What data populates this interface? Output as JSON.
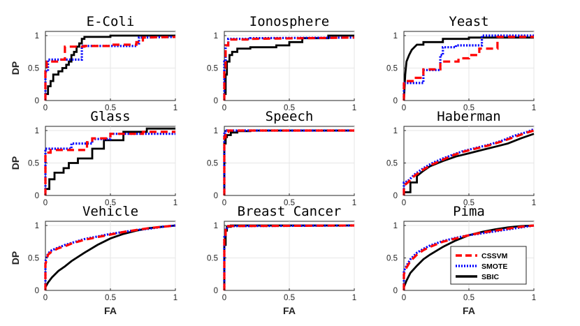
{
  "figure": {
    "xlabel": "FA",
    "ylabel": "DP"
  },
  "legend": {
    "position": "bottom-right of Pima panel",
    "entries": [
      {
        "name": "CSSVM",
        "color": "#ff0000",
        "style": "dashed"
      },
      {
        "name": "SMOTE",
        "color": "#0000ff",
        "style": "dotted"
      },
      {
        "name": "SBIC",
        "color": "#000000",
        "style": "solid"
      }
    ]
  },
  "chart_data": [
    {
      "type": "line",
      "title": "E-Coli",
      "xlabel": "",
      "ylabel": "DP",
      "xlim": [
        0,
        1
      ],
      "ylim": [
        0,
        1
      ],
      "xticks": [
        "0",
        "0.5",
        "1"
      ],
      "yticks": [
        "0",
        "0.5",
        "1"
      ],
      "series": [
        {
          "name": "CSSVM",
          "x": [
            0,
            0,
            0.01,
            0.01,
            0.1,
            0.1,
            0.15,
            0.15,
            0.3,
            0.3,
            0.5,
            0.5,
            0.7,
            0.7,
            0.75,
            0.75,
            1
          ],
          "y": [
            0,
            0.45,
            0.45,
            0.6,
            0.6,
            0.63,
            0.63,
            0.83,
            0.83,
            0.84,
            0.84,
            0.86,
            0.86,
            0.9,
            0.9,
            0.97,
            0.98
          ]
        },
        {
          "name": "SMOTE",
          "x": [
            0,
            0,
            0.02,
            0.02,
            0.12,
            0.12,
            0.28,
            0.28,
            0.4,
            0.4,
            0.7,
            0.7,
            0.72,
            0.72,
            1
          ],
          "y": [
            0,
            0.45,
            0.45,
            0.63,
            0.63,
            0.63,
            0.63,
            0.84,
            0.84,
            0.84,
            0.84,
            0.88,
            0.88,
            0.97,
            0.98
          ]
        },
        {
          "name": "SBIC",
          "x": [
            0,
            0,
            0.02,
            0.02,
            0.04,
            0.04,
            0.06,
            0.06,
            0.1,
            0.1,
            0.13,
            0.13,
            0.16,
            0.16,
            0.18,
            0.18,
            0.2,
            0.2,
            0.22,
            0.22,
            0.24,
            0.24,
            0.26,
            0.26,
            0.28,
            0.28,
            0.3,
            0.3,
            0.5,
            0.5,
            0.7,
            0.7,
            1
          ],
          "y": [
            0,
            0.1,
            0.1,
            0.22,
            0.22,
            0.3,
            0.3,
            0.4,
            0.4,
            0.45,
            0.45,
            0.5,
            0.5,
            0.55,
            0.55,
            0.6,
            0.6,
            0.7,
            0.7,
            0.75,
            0.75,
            0.83,
            0.83,
            0.88,
            0.88,
            0.95,
            0.95,
            0.98,
            0.98,
            1.0,
            1.0,
            1.0,
            1.0
          ]
        }
      ]
    },
    {
      "type": "line",
      "title": "Ionosphere",
      "xlabel": "",
      "ylabel": "",
      "xlim": [
        0,
        1
      ],
      "ylim": [
        0,
        1
      ],
      "xticks": [
        "0",
        "0.5",
        "1"
      ],
      "yticks": [
        "0",
        "0.5",
        "1"
      ],
      "series": [
        {
          "name": "CSSVM",
          "x": [
            0,
            0,
            0.01,
            0.01,
            0.03,
            0.03,
            0.2,
            0.2,
            1
          ],
          "y": [
            0,
            0.5,
            0.5,
            0.85,
            0.85,
            0.94,
            0.94,
            0.95,
            0.97
          ]
        },
        {
          "name": "SMOTE",
          "x": [
            0,
            0,
            0.01,
            0.01,
            0.03,
            0.03,
            0.2,
            0.2,
            1
          ],
          "y": [
            0,
            0.6,
            0.6,
            0.85,
            0.85,
            0.95,
            0.95,
            0.96,
            0.97
          ]
        },
        {
          "name": "SBIC",
          "x": [
            0,
            0,
            0.01,
            0.01,
            0.02,
            0.02,
            0.04,
            0.04,
            0.06,
            0.06,
            0.1,
            0.1,
            0.2,
            0.2,
            0.4,
            0.4,
            0.5,
            0.5,
            0.6,
            0.6,
            0.8,
            0.8,
            1
          ],
          "y": [
            0,
            0.1,
            0.1,
            0.4,
            0.4,
            0.6,
            0.6,
            0.7,
            0.7,
            0.75,
            0.75,
            0.8,
            0.8,
            0.82,
            0.82,
            0.85,
            0.85,
            0.9,
            0.9,
            0.96,
            0.96,
            1.0,
            1.0
          ]
        }
      ]
    },
    {
      "type": "line",
      "title": "Yeast",
      "xlabel": "",
      "ylabel": "",
      "xlim": [
        0,
        1
      ],
      "ylim": [
        0,
        1
      ],
      "xticks": [
        "0",
        "0.5",
        "1"
      ],
      "yticks": [
        "0",
        "0.5",
        "1"
      ],
      "series": [
        {
          "name": "CSSVM",
          "x": [
            0,
            0,
            0.08,
            0.08,
            0.15,
            0.15,
            0.28,
            0.28,
            0.42,
            0.42,
            0.5,
            0.5,
            0.58,
            0.58,
            0.72,
            0.72,
            1
          ],
          "y": [
            0,
            0.3,
            0.3,
            0.35,
            0.35,
            0.48,
            0.48,
            0.6,
            0.6,
            0.65,
            0.65,
            0.7,
            0.7,
            0.8,
            0.8,
            0.98,
            0.98
          ]
        },
        {
          "name": "SMOTE",
          "x": [
            0,
            0,
            0.15,
            0.15,
            0.28,
            0.28,
            0.3,
            0.3,
            0.4,
            0.4,
            0.6,
            0.6,
            1
          ],
          "y": [
            0,
            0.27,
            0.27,
            0.47,
            0.47,
            0.7,
            0.7,
            0.82,
            0.82,
            0.85,
            0.85,
            1.0,
            1.0
          ]
        },
        {
          "name": "SBIC",
          "x": [
            0,
            0.01,
            0.02,
            0.04,
            0.06,
            0.08,
            0.1,
            0.15,
            0.15,
            0.3,
            0.3,
            0.5,
            0.5,
            1
          ],
          "y": [
            0,
            0.4,
            0.6,
            0.7,
            0.78,
            0.82,
            0.86,
            0.86,
            0.9,
            0.9,
            0.95,
            0.95,
            0.97,
            0.97
          ]
        }
      ]
    },
    {
      "type": "line",
      "title": "Glass",
      "xlabel": "",
      "ylabel": "DP",
      "xlim": [
        0,
        1
      ],
      "ylim": [
        0,
        1
      ],
      "xticks": [
        "0",
        "0.5",
        "1"
      ],
      "yticks": [
        "0",
        "0.5",
        "1"
      ],
      "series": [
        {
          "name": "CSSVM",
          "x": [
            0,
            0,
            0.04,
            0.04,
            0.32,
            0.32,
            0.36,
            0.36,
            0.5,
            0.5,
            0.75,
            0.75,
            1
          ],
          "y": [
            0,
            0.66,
            0.66,
            0.7,
            0.7,
            0.82,
            0.82,
            0.88,
            0.88,
            0.95,
            0.95,
            0.98,
            0.98
          ]
        },
        {
          "name": "SMOTE",
          "x": [
            0,
            0,
            0.04,
            0.04,
            0.2,
            0.2,
            0.36,
            0.36,
            0.5,
            0.5,
            0.8,
            0.8,
            1
          ],
          "y": [
            0,
            0.72,
            0.72,
            0.72,
            0.72,
            0.8,
            0.8,
            0.87,
            0.87,
            0.95,
            0.95,
            0.95,
            0.95
          ]
        },
        {
          "name": "SBIC",
          "x": [
            0,
            0,
            0.03,
            0.03,
            0.07,
            0.07,
            0.14,
            0.14,
            0.18,
            0.18,
            0.25,
            0.25,
            0.36,
            0.36,
            0.45,
            0.45,
            0.6,
            0.6,
            0.78,
            0.78,
            1
          ],
          "y": [
            0,
            0.1,
            0.1,
            0.25,
            0.25,
            0.35,
            0.35,
            0.42,
            0.42,
            0.5,
            0.5,
            0.57,
            0.57,
            0.72,
            0.72,
            0.85,
            0.85,
            0.98,
            0.98,
            1.03,
            1.03
          ]
        }
      ]
    },
    {
      "type": "line",
      "title": "Speech",
      "xlabel": "",
      "ylabel": "",
      "xlim": [
        0,
        1
      ],
      "ylim": [
        0,
        1
      ],
      "xticks": [
        "0",
        "0.5",
        "1"
      ],
      "yticks": [
        "0",
        "0.5",
        "1"
      ],
      "series": [
        {
          "name": "CSSVM",
          "x": [
            0,
            0,
            0.01,
            0.01,
            0.03,
            0.03,
            1
          ],
          "y": [
            0,
            0.9,
            0.9,
            0.98,
            0.98,
            1.0,
            1.0
          ]
        },
        {
          "name": "SMOTE",
          "x": [
            0,
            0,
            0.01,
            0.01,
            0.02,
            0.02,
            1
          ],
          "y": [
            0,
            0.95,
            0.95,
            0.99,
            0.99,
            1.0,
            1.0
          ]
        },
        {
          "name": "SBIC",
          "x": [
            0,
            0,
            0.01,
            0.01,
            0.02,
            0.02,
            0.05,
            0.05,
            0.1,
            0.1,
            0.2,
            0.2,
            1
          ],
          "y": [
            0,
            0.8,
            0.8,
            0.9,
            0.9,
            0.93,
            0.93,
            0.97,
            0.97,
            0.99,
            0.99,
            1.0,
            1.0
          ]
        }
      ]
    },
    {
      "type": "line",
      "title": "Haberman",
      "xlabel": "",
      "ylabel": "",
      "xlim": [
        0,
        1
      ],
      "ylim": [
        0,
        1
      ],
      "xticks": [
        "0",
        "0.5",
        "1"
      ],
      "yticks": [
        "0",
        "0.5",
        "1"
      ],
      "series": [
        {
          "name": "CSSVM",
          "x": [
            0,
            0,
            0.03,
            0.08,
            0.15,
            0.22,
            0.3,
            0.38,
            0.45,
            0.55,
            0.65,
            0.75,
            0.85,
            0.95,
            1
          ],
          "y": [
            0,
            0.15,
            0.2,
            0.3,
            0.4,
            0.48,
            0.55,
            0.62,
            0.67,
            0.72,
            0.77,
            0.83,
            0.9,
            0.97,
            1.0
          ]
        },
        {
          "name": "SMOTE",
          "x": [
            0,
            0,
            0.03,
            0.08,
            0.15,
            0.22,
            0.3,
            0.38,
            0.45,
            0.55,
            0.65,
            0.75,
            0.85,
            0.95,
            1
          ],
          "y": [
            0,
            0.2,
            0.22,
            0.32,
            0.42,
            0.5,
            0.57,
            0.63,
            0.68,
            0.73,
            0.78,
            0.84,
            0.92,
            0.98,
            1.02
          ]
        },
        {
          "name": "SBIC",
          "x": [
            0,
            0,
            0.05,
            0.05,
            0.1,
            0.1,
            0.15,
            0.2,
            0.3,
            0.4,
            0.5,
            0.6,
            0.7,
            0.8,
            0.9,
            1
          ],
          "y": [
            0,
            0.05,
            0.05,
            0.2,
            0.2,
            0.3,
            0.38,
            0.45,
            0.53,
            0.6,
            0.65,
            0.7,
            0.75,
            0.8,
            0.88,
            0.95
          ]
        }
      ]
    },
    {
      "type": "line",
      "title": "Vehicle",
      "xlabel": "FA",
      "ylabel": "DP",
      "xlim": [
        0,
        1
      ],
      "ylim": [
        0,
        1
      ],
      "xticks": [
        "0",
        "0.5",
        "1"
      ],
      "yticks": [
        "0",
        "0.5",
        "1"
      ],
      "series": [
        {
          "name": "CSSVM",
          "x": [
            0,
            0,
            0.02,
            0.05,
            0.1,
            0.15,
            0.2,
            0.3,
            0.4,
            0.5,
            0.6,
            0.7,
            0.8,
            0.9,
            1
          ],
          "y": [
            0,
            0.4,
            0.55,
            0.6,
            0.65,
            0.68,
            0.72,
            0.78,
            0.82,
            0.86,
            0.9,
            0.93,
            0.96,
            0.98,
            1.0
          ]
        },
        {
          "name": "SMOTE",
          "x": [
            0,
            0,
            0.02,
            0.05,
            0.1,
            0.15,
            0.2,
            0.3,
            0.4,
            0.5,
            0.6,
            0.7,
            0.8,
            0.9,
            1
          ],
          "y": [
            0,
            0.45,
            0.57,
            0.62,
            0.66,
            0.7,
            0.73,
            0.79,
            0.83,
            0.87,
            0.9,
            0.93,
            0.95,
            0.98,
            1.0
          ]
        },
        {
          "name": "SBIC",
          "x": [
            0,
            0,
            0.02,
            0.05,
            0.1,
            0.15,
            0.2,
            0.3,
            0.4,
            0.5,
            0.6,
            0.7,
            0.8,
            0.9,
            1
          ],
          "y": [
            0,
            0.05,
            0.12,
            0.2,
            0.3,
            0.37,
            0.45,
            0.58,
            0.7,
            0.8,
            0.87,
            0.92,
            0.96,
            0.98,
            1.0
          ]
        }
      ]
    },
    {
      "type": "line",
      "title": "Breast Cancer",
      "xlabel": "FA",
      "ylabel": "",
      "xlim": [
        0,
        1
      ],
      "ylim": [
        0,
        1
      ],
      "xticks": [
        "0",
        "0.5",
        "1"
      ],
      "yticks": [
        "0",
        "0.5",
        "1"
      ],
      "series": [
        {
          "name": "CSSVM",
          "x": [
            0,
            0,
            0.01,
            0.01,
            0.03,
            0.03,
            1
          ],
          "y": [
            0,
            0.8,
            0.8,
            0.95,
            0.95,
            0.99,
            1.0
          ]
        },
        {
          "name": "SMOTE",
          "x": [
            0,
            0,
            0.01,
            0.01,
            0.03,
            0.03,
            1
          ],
          "y": [
            0,
            0.85,
            0.85,
            0.96,
            0.96,
            0.99,
            1.0
          ]
        },
        {
          "name": "SBIC",
          "x": [
            0,
            0,
            0.01,
            0.01,
            0.02,
            0.02,
            0.05,
            0.05,
            1
          ],
          "y": [
            0,
            0.7,
            0.7,
            0.92,
            0.92,
            0.98,
            0.98,
            1.0,
            1.0
          ]
        }
      ]
    },
    {
      "type": "line",
      "title": "Pima",
      "xlabel": "FA",
      "ylabel": "",
      "xlim": [
        0,
        1
      ],
      "ylim": [
        0,
        1
      ],
      "xticks": [
        "0",
        "0.5",
        "1"
      ],
      "yticks": [
        "0",
        "0.5",
        "1"
      ],
      "series": [
        {
          "name": "CSSVM",
          "x": [
            0,
            0,
            0.02,
            0.05,
            0.1,
            0.15,
            0.2,
            0.3,
            0.4,
            0.5,
            0.6,
            0.7,
            0.8,
            0.9,
            1
          ],
          "y": [
            0,
            0.25,
            0.35,
            0.45,
            0.55,
            0.62,
            0.67,
            0.75,
            0.8,
            0.85,
            0.89,
            0.92,
            0.95,
            0.98,
            1.0
          ]
        },
        {
          "name": "SMOTE",
          "x": [
            0,
            0,
            0.02,
            0.05,
            0.1,
            0.15,
            0.2,
            0.3,
            0.4,
            0.5,
            0.6,
            0.7,
            0.8,
            0.9,
            1
          ],
          "y": [
            0,
            0.3,
            0.38,
            0.48,
            0.58,
            0.64,
            0.69,
            0.76,
            0.81,
            0.85,
            0.88,
            0.91,
            0.94,
            0.97,
            1.0
          ]
        },
        {
          "name": "SBIC",
          "x": [
            0,
            0,
            0.02,
            0.05,
            0.1,
            0.15,
            0.2,
            0.3,
            0.4,
            0.5,
            0.6,
            0.7,
            0.8,
            0.9,
            1
          ],
          "y": [
            0,
            0.05,
            0.15,
            0.27,
            0.38,
            0.48,
            0.55,
            0.67,
            0.77,
            0.85,
            0.9,
            0.94,
            0.97,
            0.99,
            1.0
          ]
        }
      ]
    }
  ]
}
